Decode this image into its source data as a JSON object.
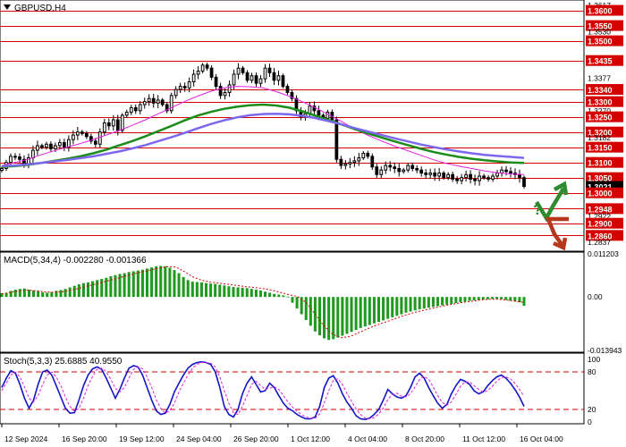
{
  "colors": {
    "level_line": "#d40000",
    "price_tag": "#d40000",
    "current_tag": "#000000",
    "candle": "#000000",
    "ma_magenta": "#e020e0",
    "ma_green": "#1a8c1a",
    "ma_blue": "#7b68ee",
    "macd_bar": "#1f9a1f",
    "macd_signal": "#d40000",
    "stoch_main": "#1414c8",
    "stoch_signal": "#e020e0",
    "arrow_up": "#2e8b2e",
    "arrow_down": "#b5371c",
    "question_mark": "#2e8b2e"
  },
  "chart_data": [
    {
      "type": "candlestick",
      "title": "GBPUSD,H4",
      "ylim": [
        1.2808,
        1.3634
      ],
      "y_axis_labels": [
        "1.3617",
        "1.3600",
        "1.3550",
        "1.3530",
        "1.3500",
        "1.3435",
        "1.3377",
        "1.3340",
        "1.3300",
        "1.3270",
        "1.3250",
        "1.3200",
        "1.3182",
        "1.3150",
        "1.3100",
        "1.3050",
        "1.3021",
        "1.3000",
        "1.2948",
        "1.2922",
        "1.2900",
        "1.2860",
        "1.2837"
      ],
      "levels": [
        1.36,
        1.355,
        1.35,
        1.3435,
        1.334,
        1.33,
        1.325,
        1.32,
        1.315,
        1.31,
        1.305,
        1.3,
        1.2948,
        1.29,
        1.286
      ],
      "current_price": "1.3021",
      "x_labels": [
        "12 Sep 2024",
        "16 Sep 20:00",
        "19 Sep 12:00",
        "24 Sep 04:00",
        "26 Sep 20:00",
        "1 Oct 12:00",
        "4 Oct 04:00",
        "8 Oct 20:00",
        "11 Oct 12:00",
        "16 Oct 04:00"
      ],
      "close": [
        1.308,
        1.31,
        1.312,
        1.3118,
        1.311,
        1.3095,
        1.3115,
        1.314,
        1.3155,
        1.315,
        1.316,
        1.3145,
        1.3155,
        1.3165,
        1.315,
        1.3175,
        1.319,
        1.32,
        1.3195,
        1.3185,
        1.317,
        1.316,
        1.32,
        1.323,
        1.322,
        1.324,
        1.3205,
        1.3255,
        1.3265,
        1.328,
        1.327,
        1.329,
        1.33,
        1.331,
        1.3295,
        1.3305,
        1.329,
        1.327,
        1.332,
        1.334,
        1.335,
        1.3345,
        1.3365,
        1.339,
        1.34,
        1.342,
        1.341,
        1.338,
        1.335,
        1.332,
        1.333,
        1.3355,
        1.339,
        1.341,
        1.3395,
        1.337,
        1.3385,
        1.336,
        1.3375,
        1.341,
        1.3395,
        1.337,
        1.3385,
        1.335,
        1.333,
        1.331,
        1.327,
        1.325,
        1.326,
        1.3285,
        1.327,
        1.3255,
        1.3245,
        1.3265,
        1.324,
        1.311,
        1.309,
        1.3095,
        1.31,
        1.3105,
        1.3115,
        1.313,
        1.312,
        1.3085,
        1.306,
        1.3075,
        1.309,
        1.3085,
        1.308,
        1.307,
        1.3075,
        1.309,
        1.308,
        1.3075,
        1.3065,
        1.306,
        1.3065,
        1.3055,
        1.3065,
        1.305,
        1.306,
        1.3045,
        1.304,
        1.305,
        1.306,
        1.3045,
        1.304,
        1.3055,
        1.305,
        1.3045,
        1.3055,
        1.3065,
        1.3075,
        1.307,
        1.3065,
        1.306,
        1.305,
        1.3021
      ],
      "indicators": [
        {
          "color": "ma_magenta",
          "values": [
            1.309,
            1.31,
            1.311,
            1.3125,
            1.3138,
            1.315,
            1.3162,
            1.3175,
            1.319,
            1.3205,
            1.3222,
            1.324,
            1.326,
            1.328,
            1.33,
            1.3318,
            1.3334,
            1.3345,
            1.335,
            1.3349,
            1.3345,
            1.3333,
            1.3318,
            1.33,
            1.328,
            1.3258,
            1.3235,
            1.321,
            1.319,
            1.3172,
            1.3155,
            1.314,
            1.3125,
            1.311,
            1.3097,
            1.3088,
            1.308,
            1.3072,
            1.3066,
            1.3062,
            1.306
          ]
        },
        {
          "color": "ma_green",
          "values": [
            1.3085,
            1.3088,
            1.3092,
            1.3098,
            1.3105,
            1.3112,
            1.312,
            1.313,
            1.3142,
            1.3156,
            1.317,
            1.3186,
            1.3203,
            1.322,
            1.3238,
            1.3254,
            1.3266,
            1.3276,
            1.3283,
            1.3288,
            1.329,
            1.3287,
            1.328,
            1.3268,
            1.3254,
            1.324,
            1.3225,
            1.321,
            1.3196,
            1.3183,
            1.317,
            1.3158,
            1.3146,
            1.3135,
            1.3126,
            1.3118,
            1.3112,
            1.3107,
            1.3103,
            1.31,
            1.3098
          ]
        },
        {
          "color": "ma_blue",
          "values": [
            1.3088,
            1.309,
            1.3094,
            1.3098,
            1.3103,
            1.3108,
            1.3114,
            1.312,
            1.3128,
            1.3136,
            1.3146,
            1.3157,
            1.317,
            1.3183,
            1.3197,
            1.3212,
            1.3226,
            1.3238,
            1.3248,
            1.3255,
            1.3259,
            1.326,
            1.3258,
            1.3253,
            1.3246,
            1.3236,
            1.3225,
            1.3213,
            1.3202,
            1.3191,
            1.318,
            1.317,
            1.316,
            1.3151,
            1.3143,
            1.3136,
            1.313,
            1.3125,
            1.3121,
            1.3118,
            1.3115
          ]
        }
      ]
    },
    {
      "type": "bar",
      "title": "MACD(5,34,4) -0.002280 -0.001366",
      "ylim": [
        -0.01394,
        0.01123
      ],
      "y_axis_labels": [
        "0.011203",
        "0.00",
        "-0.013943"
      ],
      "histogram": [
        0.001,
        0.0011,
        0.0016,
        0.0019,
        0.0021,
        0.0022,
        0.0019,
        0.0017,
        0.0015,
        0.0012,
        0.0011,
        0.0013,
        0.0016,
        0.0018,
        0.0021,
        0.0025,
        0.0029,
        0.0033,
        0.0036,
        0.0038,
        0.0041,
        0.0044,
        0.0047,
        0.005,
        0.0054,
        0.0057,
        0.006,
        0.0062,
        0.0065,
        0.0067,
        0.0069,
        0.0071,
        0.0074,
        0.0077,
        0.008,
        0.0081,
        0.008,
        0.0076,
        0.007,
        0.0062,
        0.0052,
        0.0044,
        0.004,
        0.0039,
        0.0038,
        0.0036,
        0.0035,
        0.0034,
        0.0032,
        0.003,
        0.0028,
        0.0026,
        0.0025,
        0.0024,
        0.0023,
        0.0021,
        0.0019,
        0.0017,
        0.0014,
        0.0011,
        0.0008,
        0.0006,
        0.0004,
        0.0001,
        -0.0015,
        -0.003,
        -0.0045,
        -0.006,
        -0.0075,
        -0.009,
        -0.01,
        -0.0108,
        -0.0112,
        -0.011,
        -0.0106,
        -0.0101,
        -0.0096,
        -0.0091,
        -0.0086,
        -0.0081,
        -0.0077,
        -0.0073,
        -0.0069,
        -0.0065,
        -0.0061,
        -0.0057,
        -0.0053,
        -0.0049,
        -0.0045,
        -0.0041,
        -0.0038,
        -0.0035,
        -0.0032,
        -0.003,
        -0.0028,
        -0.0026,
        -0.0024,
        -0.0022,
        -0.002,
        -0.0018,
        -0.0016,
        -0.0014,
        -0.0012,
        -0.001,
        -0.0009,
        -0.0008,
        -0.0007,
        -0.0006,
        -0.0005,
        -0.0005,
        -0.0006,
        -0.0008,
        -0.001,
        -0.0012,
        -0.0014,
        -0.0023
      ],
      "signal": [
        0.0008,
        0.0012,
        0.0016,
        0.0018,
        0.0016,
        0.0013,
        0.0012,
        0.0014,
        0.0018,
        0.0023,
        0.0029,
        0.0035,
        0.0041,
        0.0047,
        0.0053,
        0.0059,
        0.0065,
        0.007,
        0.0075,
        0.0079,
        0.0078,
        0.0066,
        0.0052,
        0.0043,
        0.0039,
        0.0036,
        0.0033,
        0.003,
        0.0027,
        0.0025,
        0.0022,
        0.0018,
        0.0012,
        0.0006,
        0.0001,
        -0.0015,
        -0.0045,
        -0.0075,
        -0.0097,
        -0.0106,
        -0.0103,
        -0.0093,
        -0.0083,
        -0.0074,
        -0.0066,
        -0.0058,
        -0.005,
        -0.0043,
        -0.0037,
        -0.0032,
        -0.0027,
        -0.0022,
        -0.0018,
        -0.0014,
        -0.0011,
        -0.0008,
        -0.0006,
        -0.0006,
        -0.0008,
        -0.0011,
        -0.0014
      ]
    },
    {
      "type": "line",
      "title": "Stoch(5,3,3) 25.6885 40.9550",
      "ylim": [
        0,
        100
      ],
      "y_axis_labels": [
        "100",
        "80",
        "20",
        "0"
      ],
      "dashed_levels": [
        80,
        20
      ],
      "series": [
        {
          "color": "stoch_main",
          "values": [
            55,
            70,
            82,
            78,
            60,
            38,
            22,
            35,
            60,
            80,
            83,
            75,
            58,
            40,
            22,
            14,
            15,
            35,
            58,
            75,
            85,
            88,
            84,
            70,
            54,
            38,
            52,
            70,
            86,
            90,
            88,
            75,
            55,
            35,
            18,
            12,
            14,
            28,
            48,
            62,
            75,
            86,
            92,
            95,
            96,
            95,
            92,
            80,
            55,
            25,
            12,
            8,
            20,
            45,
            62,
            72,
            60,
            48,
            50,
            62,
            55,
            42,
            30,
            22,
            18,
            12,
            8,
            5,
            5,
            8,
            25,
            55,
            70,
            74,
            62,
            45,
            32,
            22,
            10,
            5,
            4,
            6,
            12,
            20,
            35,
            52,
            45,
            40,
            38,
            42,
            55,
            72,
            78,
            70,
            55,
            42,
            30,
            22,
            28,
            45,
            58,
            68,
            65,
            60,
            50,
            45,
            48,
            58,
            66,
            72,
            75,
            70,
            62,
            52,
            40,
            25
          ]
        },
        {
          "color": "stoch_signal",
          "values": [
            50,
            62,
            75,
            80,
            72,
            56,
            38,
            32,
            42,
            60,
            75,
            80,
            72,
            58,
            40,
            25,
            17,
            22,
            38,
            58,
            73,
            84,
            86,
            80,
            68,
            54,
            48,
            55,
            70,
            84,
            88,
            85,
            72,
            55,
            36,
            22,
            14,
            18,
            30,
            48,
            62,
            75,
            86,
            92,
            95,
            95,
            94,
            88,
            72,
            50,
            30,
            15,
            12,
            25,
            42,
            60,
            65,
            58,
            52,
            54,
            56,
            52,
            42,
            32,
            24,
            17,
            12,
            8,
            6,
            6,
            13,
            30,
            50,
            66,
            69,
            60,
            46,
            33,
            21,
            12,
            6,
            5,
            7,
            13,
            22,
            36,
            44,
            46,
            41,
            40,
            45,
            56,
            68,
            73,
            68,
            56,
            42,
            31,
            27,
            32,
            44,
            57,
            64,
            64,
            58,
            52,
            48,
            50,
            57,
            65,
            71,
            72,
            69,
            62,
            52,
            41
          ]
        }
      ]
    }
  ]
}
